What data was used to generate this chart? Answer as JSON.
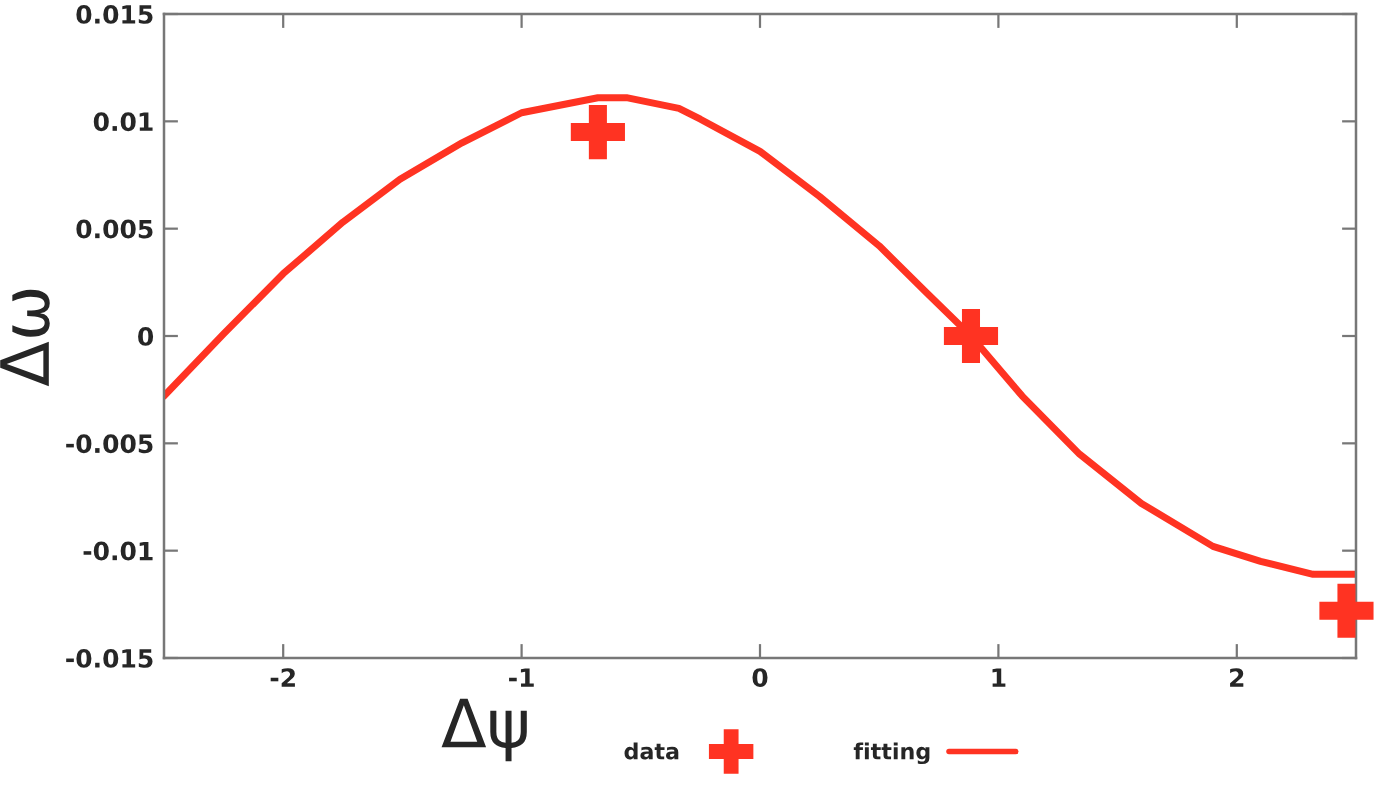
{
  "chart_data": {
    "type": "scatter",
    "xlabel": "Δψ",
    "ylabel": "Δω",
    "xlim": [
      -2.5,
      2.5
    ],
    "ylim": [
      -0.015,
      0.015
    ],
    "xticks": [
      -2,
      -1,
      0,
      1,
      2
    ],
    "yticks": [
      -0.015,
      -0.01,
      -0.005,
      0,
      0.005,
      0.01,
      0.015
    ],
    "grid": false,
    "legend": "bottom",
    "series": [
      {
        "name": "data",
        "marker": "cross",
        "color": "#ff3322",
        "x": [
          -0.68,
          0.885,
          2.46
        ],
        "values": [
          0.0095,
          0,
          -0.0128
        ]
      },
      {
        "name": "fitting",
        "type": "line",
        "marker": "none",
        "line_style": "solid",
        "color": "#ff3322",
        "x": [
          -2.5,
          -2.25,
          -2,
          -1.75,
          -1.51,
          -1.25,
          -1,
          -0.68,
          -0.56,
          -0.34,
          -0.25,
          0,
          0.25,
          0.5,
          0.7,
          0.885,
          1.1,
          1.34,
          1.6,
          1.9,
          2.1,
          2.32,
          2.5
        ],
        "values": [
          -0.0028,
          0.0001,
          0.0029,
          0.0053,
          0.0073,
          0.009,
          0.0104,
          0.0111,
          0.0111,
          0.0106,
          0.0101,
          0.0086,
          0.0065,
          0.0042,
          0.002,
          0,
          -0.0028,
          -0.0055,
          -0.0078,
          -0.0098,
          -0.0105,
          -0.0111,
          -0.0111
        ]
      }
    ]
  }
}
